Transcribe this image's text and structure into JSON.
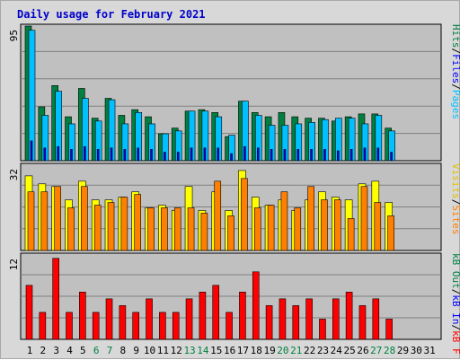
{
  "chart_data": {
    "type": "bar",
    "title": "Daily usage for February 2021",
    "categories": [
      "1",
      "2",
      "3",
      "4",
      "5",
      "6",
      "7",
      "8",
      "9",
      "10",
      "11",
      "12",
      "13",
      "14",
      "15",
      "16",
      "17",
      "18",
      "19",
      "20",
      "21",
      "22",
      "23",
      "24",
      "25",
      "26",
      "27",
      "28",
      "29",
      "30",
      "31"
    ],
    "weekend_days": [
      "6",
      "7",
      "13",
      "14",
      "20",
      "21",
      "27",
      "28"
    ],
    "panels": [
      {
        "name": "top",
        "ymax_label": "95",
        "ylim": [
          0,
          95
        ],
        "legend": [
          "Pages",
          "Files",
          "Hits"
        ],
        "series": [
          {
            "name": "Hits",
            "color": "#008040",
            "values": [
              95,
              38,
              53,
              31,
              51,
              30,
              44,
              32,
              36,
              31,
              19,
              23,
              35,
              36,
              34,
              17,
              42,
              34,
              31,
              34,
              31,
              30,
              30,
              28,
              31,
              33,
              33,
              23,
              0,
              0,
              0
            ]
          },
          {
            "name": "Files",
            "color": "#00c0ff",
            "values": [
              92,
              32,
              49,
              26,
              44,
              28,
              43,
              26,
              34,
              26,
              19,
              21,
              35,
              35,
              31,
              18,
              42,
              32,
              25,
              25,
              26,
              27,
              29,
              30,
              30,
              26,
              32,
              21,
              0,
              0,
              0
            ]
          },
          {
            "name": "Pages",
            "color": "#0000ff",
            "values": [
              14,
              9,
              10,
              8,
              10,
              8,
              9,
              8,
              9,
              8,
              6,
              6,
              9,
              9,
              9,
              5,
              10,
              9,
              8,
              8,
              8,
              8,
              8,
              7,
              8,
              9,
              9,
              6,
              0,
              0,
              0
            ]
          }
        ]
      },
      {
        "name": "middle",
        "ymax_label": "32",
        "ylim": [
          0,
          32
        ],
        "legend": [
          "Sites",
          "Visits"
        ],
        "series": [
          {
            "name": "Visits",
            "color": "#ffff00",
            "values": [
              28,
              25,
              24,
              19,
              26,
              19,
              19,
              20,
              22,
              16,
              17,
              15,
              24,
              15,
              22,
              15,
              30,
              20,
              17,
              19,
              15,
              19,
              22,
              20,
              19,
              25,
              26,
              18,
              0,
              0,
              0
            ]
          },
          {
            "name": "Sites",
            "color": "#ff8000",
            "values": [
              22,
              22,
              24,
              16,
              24,
              17,
              18,
              20,
              21,
              16,
              16,
              16,
              16,
              14,
              26,
              13,
              27,
              16,
              17,
              22,
              16,
              24,
              19,
              19,
              12,
              24,
              18,
              13,
              0,
              0,
              0
            ]
          }
        ]
      },
      {
        "name": "bottom",
        "ymax_label": "12",
        "ylim": [
          0,
          12.5
        ],
        "legend": [
          "kB F",
          "kB In",
          "kB Out"
        ],
        "series": [
          {
            "name": "kB F",
            "color": "#ff0000",
            "values": [
              8,
              4,
              12,
              4,
              7,
              4,
              6,
              5,
              4,
              6,
              4,
              4,
              6,
              7,
              8,
              4,
              7,
              10,
              5,
              6,
              5,
              6,
              3,
              6,
              7,
              5,
              6,
              3,
              0,
              0,
              0
            ]
          }
        ]
      }
    ],
    "grid": true
  }
}
